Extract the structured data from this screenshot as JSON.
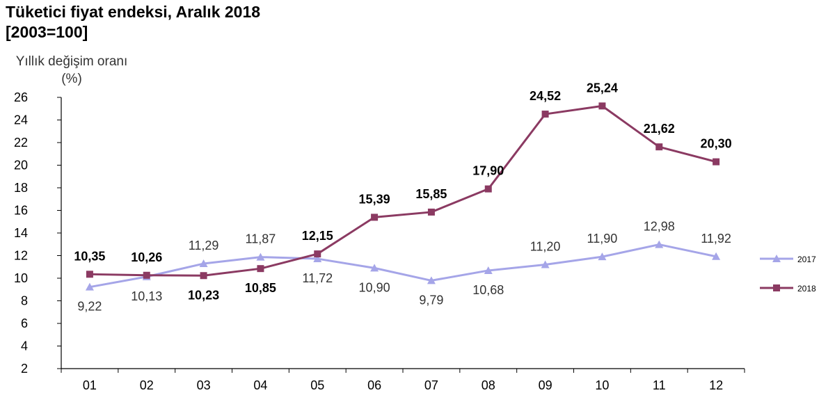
{
  "title": "Tüketici fiyat endeksi, Aralık 2018",
  "subtitle": "[2003=100]",
  "chart_data": {
    "type": "line",
    "title": "Tüketici fiyat endeksi, Aralık 2018",
    "subtitle": "[2003=100]",
    "ylabel": "Yıllık değişim oranı (%)",
    "xlabel": "",
    "categories": [
      "01",
      "02",
      "03",
      "04",
      "05",
      "06",
      "07",
      "08",
      "09",
      "10",
      "11",
      "12"
    ],
    "ylim": [
      2,
      26
    ],
    "yticks": [
      2,
      4,
      6,
      8,
      10,
      12,
      14,
      16,
      18,
      20,
      22,
      24,
      26
    ],
    "grid": false,
    "legend_position": "right",
    "series": [
      {
        "name": "2017",
        "color": "#a5a5e8",
        "marker": "triangle",
        "values": [
          9.22,
          10.13,
          11.29,
          11.87,
          11.72,
          10.9,
          9.79,
          10.68,
          11.2,
          11.9,
          12.98,
          11.92
        ],
        "labels": [
          "9,22",
          "10,13",
          "11,29",
          "11,87",
          "11,72",
          "10,90",
          "9,79",
          "10,68",
          "11,20",
          "11,90",
          "12,98",
          "11,92"
        ]
      },
      {
        "name": "2018",
        "color": "#8b3a62",
        "marker": "square",
        "values": [
          10.35,
          10.26,
          10.23,
          10.85,
          12.15,
          15.39,
          15.85,
          17.9,
          24.52,
          25.24,
          21.62,
          20.3
        ],
        "labels": [
          "10,35",
          "10,26",
          "10,23",
          "10,85",
          "12,15",
          "15,39",
          "15,85",
          "17,90",
          "24,52",
          "25,24",
          "21,62",
          "20,30"
        ]
      }
    ]
  }
}
